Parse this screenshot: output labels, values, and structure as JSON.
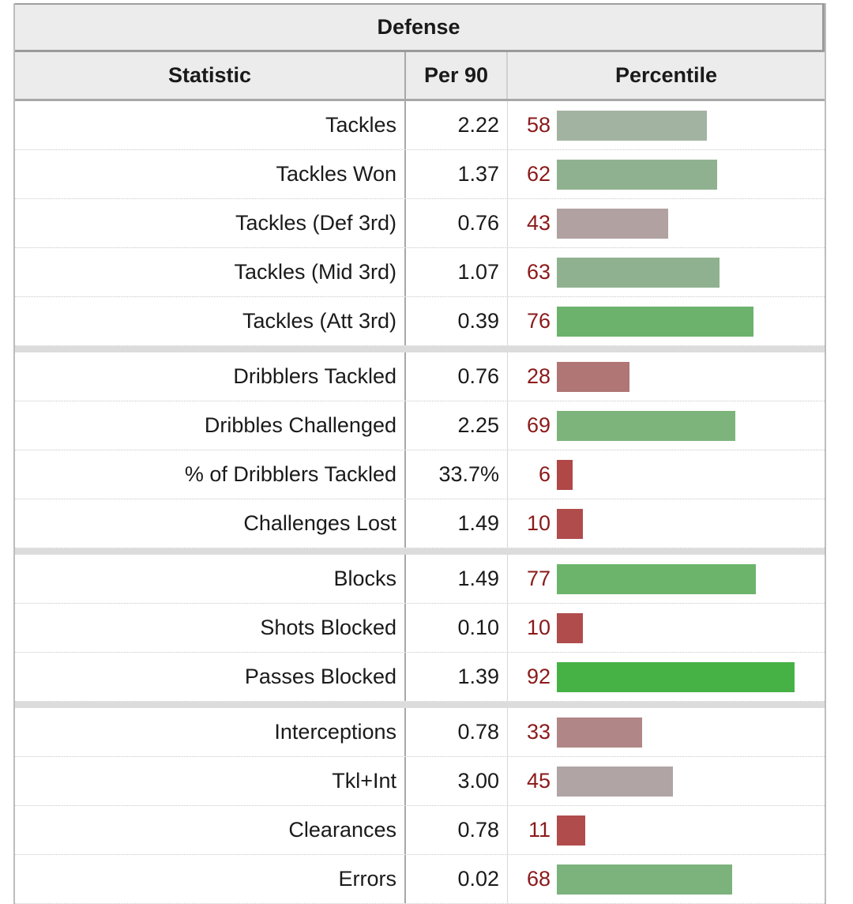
{
  "section_title": "Defense",
  "columns": {
    "statistic": "Statistic",
    "per90": "Per 90",
    "percentile": "Percentile"
  },
  "groups": [
    [
      {
        "stat": "Tackles",
        "per90": "2.22",
        "pct": "58",
        "pct_value": 58,
        "color": "#a3b3a1"
      },
      {
        "stat": "Tackles Won",
        "per90": "1.37",
        "pct": "62",
        "pct_value": 62,
        "color": "#90b190"
      },
      {
        "stat": "Tackles (Def 3rd)",
        "per90": "0.76",
        "pct": "43",
        "pct_value": 43,
        "color": "#b1a1a1"
      },
      {
        "stat": "Tackles (Mid 3rd)",
        "per90": "1.07",
        "pct": "63",
        "pct_value": 63,
        "color": "#90b190"
      },
      {
        "stat": "Tackles (Att 3rd)",
        "per90": "0.39",
        "pct": "76",
        "pct_value": 76,
        "color": "#6cb26c"
      }
    ],
    [
      {
        "stat": "Dribblers Tackled",
        "per90": "0.76",
        "pct": "28",
        "pct_value": 28,
        "color": "#b07676"
      },
      {
        "stat": "Dribbles Challenged",
        "per90": "2.25",
        "pct": "69",
        "pct_value": 69,
        "color": "#7cb47c"
      },
      {
        "stat": "% of Dribblers Tackled",
        "per90": "33.7%",
        "pct": "6",
        "pct_value": 6,
        "color": "#b04848"
      },
      {
        "stat": "Challenges Lost",
        "per90": "1.49",
        "pct": "10",
        "pct_value": 10,
        "color": "#b04c4c"
      }
    ],
    [
      {
        "stat": "Blocks",
        "per90": "1.49",
        "pct": "77",
        "pct_value": 77,
        "color": "#6cb46c"
      },
      {
        "stat": "Shots Blocked",
        "per90": "0.10",
        "pct": "10",
        "pct_value": 10,
        "color": "#b04c4c"
      },
      {
        "stat": "Passes Blocked",
        "per90": "1.39",
        "pct": "92",
        "pct_value": 92,
        "color": "#46b246"
      }
    ],
    [
      {
        "stat": "Interceptions",
        "per90": "0.78",
        "pct": "33",
        "pct_value": 33,
        "color": "#b08686"
      },
      {
        "stat": "Tkl+Int",
        "per90": "3.00",
        "pct": "45",
        "pct_value": 45,
        "color": "#b0a4a4"
      },
      {
        "stat": "Clearances",
        "per90": "0.78",
        "pct": "11",
        "pct_value": 11,
        "color": "#b04c4c"
      },
      {
        "stat": "Errors",
        "per90": "0.02",
        "pct": "68",
        "pct_value": 68,
        "color": "#7cb27c"
      }
    ]
  ]
}
